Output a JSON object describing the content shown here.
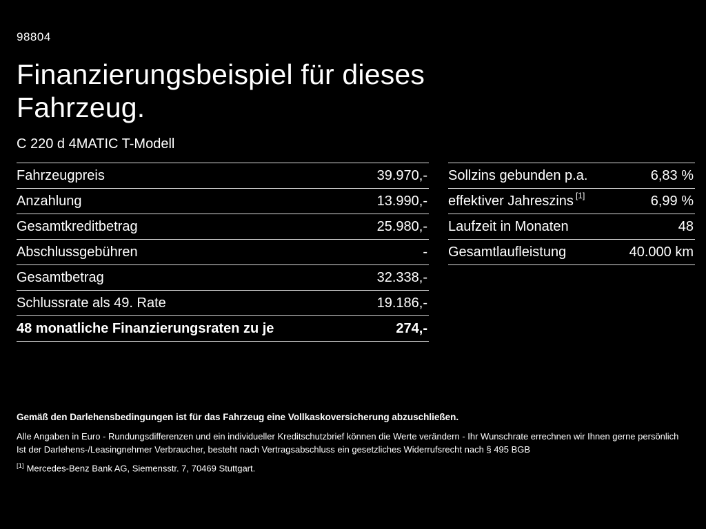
{
  "colors": {
    "background": "#000000",
    "text": "#ffffff",
    "divider": "#e2e2e2"
  },
  "page": {
    "code": "98804",
    "title_line1": "Finanzierungsbeispiel für dieses",
    "title_line2": "Fahrzeug.",
    "model": "C 220 d 4MATIC T-Modell"
  },
  "financing_table": {
    "rows": [
      {
        "label": "Fahrzeugpreis",
        "value": "39.970,-"
      },
      {
        "label": "Anzahlung",
        "value": "13.990,-"
      },
      {
        "label": "Gesamtkreditbetrag",
        "value": "25.980,-"
      },
      {
        "label": "Abschlussgebühren",
        "value": "-"
      },
      {
        "label": "Gesamtbetrag",
        "value": "32.338,-"
      },
      {
        "label": "Schlussrate als 49. Rate",
        "value": "19.186,-"
      },
      {
        "label": "48 monatliche Finanzierungsraten zu je",
        "value": "274,-"
      }
    ]
  },
  "conditions_table": {
    "rows": [
      {
        "label": "Sollzins gebunden p.a.",
        "label_sup": "",
        "value": "6,83 %"
      },
      {
        "label": "effektiver Jahreszins",
        "label_sup": "[1]",
        "value": "6,99 %"
      },
      {
        "label": "Laufzeit in Monaten",
        "label_sup": "",
        "value": "48"
      },
      {
        "label": "Gesamtlaufleistung",
        "label_sup": "",
        "value": "40.000 km"
      }
    ]
  },
  "footnotes": {
    "insurance": "Gemäß den Darlehensbedingungen ist für das Fahrzeug eine Vollkaskoversicherung abzuschließen.",
    "disclaimer1": "Alle Angaben in Euro - Rundungsdifferenzen und ein individueller Kreditschutzbrief können die Werte verändern - Ihr Wunschrate errechnen wir Ihnen gerne persönlich",
    "disclaimer2": "Ist der Darlehens-/Leasingnehmer Verbraucher, besteht nach Vertragsabschluss ein gesetzliches Widerrufsrecht nach § 495 BGB",
    "ref_marker": "[1]",
    "ref_text": "Mercedes-Benz Bank AG, Siemensstr. 7, 70469 Stuttgart."
  }
}
